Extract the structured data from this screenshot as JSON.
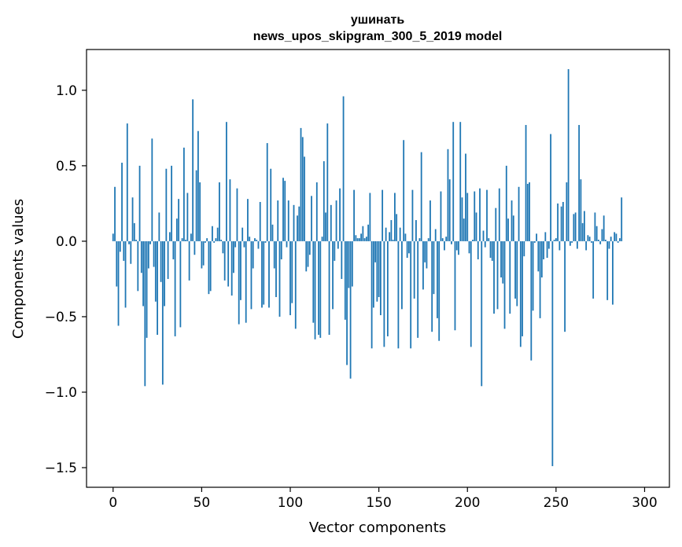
{
  "chart_data": {
    "type": "bar",
    "title_line1": "ушинать",
    "title_line2": "news_upos_skipgram_300_5_2019 model",
    "xlabel": "Vector components",
    "ylabel": "Components values",
    "xlim": [
      -15,
      314
    ],
    "ylim": [
      -1.63,
      1.27
    ],
    "xticks": [
      0,
      50,
      100,
      150,
      200,
      250,
      300
    ],
    "xtick_labels": [
      "0",
      "50",
      "100",
      "150",
      "200",
      "250",
      "300"
    ],
    "yticks": [
      1.0,
      0.5,
      0.0,
      -0.5,
      -1.0,
      -1.5
    ],
    "ytick_labels": [
      "1.0",
      "0.5",
      "0.0",
      "−0.5",
      "−1.0",
      "−1.5"
    ],
    "bar_color": "#1f77b4",
    "values": [
      0.05,
      0.36,
      -0.3,
      -0.56,
      -0.07,
      0.52,
      -0.13,
      -0.44,
      0.78,
      -0.02,
      -0.15,
      0.29,
      0.12,
      0.01,
      -0.33,
      0.5,
      -0.21,
      -0.43,
      -0.96,
      -0.64,
      -0.18,
      -0.02,
      0.68,
      -0.17,
      -0.4,
      -0.62,
      0.19,
      -0.27,
      -0.95,
      -0.43,
      0.48,
      -0.25,
      0.06,
      0.5,
      -0.12,
      -0.63,
      0.15,
      0.28,
      -0.57,
      0.02,
      0.62,
      0.01,
      0.32,
      -0.26,
      0.05,
      0.94,
      -0.09,
      0.47,
      0.73,
      0.39,
      -0.18,
      -0.16,
      -0.01,
      0.02,
      -0.35,
      -0.33,
      0.1,
      -0.01,
      0.02,
      0.09,
      0.39,
      0.01,
      -0.08,
      -0.26,
      0.79,
      -0.3,
      0.41,
      -0.36,
      -0.21,
      -0.04,
      0.35,
      -0.55,
      -0.39,
      0.09,
      -0.04,
      -0.54,
      0.28,
      0.03,
      -0.45,
      -0.18,
      0.02,
      0.01,
      -0.05,
      0.26,
      -0.44,
      -0.42,
      -0.01,
      0.65,
      -0.44,
      0.48,
      0.11,
      -0.18,
      -0.37,
      0.27,
      -0.5,
      -0.12,
      0.42,
      0.4,
      -0.04,
      0.27,
      -0.49,
      -0.41,
      0.24,
      -0.58,
      0.17,
      0.23,
      0.75,
      0.69,
      0.56,
      -0.2,
      -0.17,
      -0.09,
      0.3,
      -0.54,
      -0.65,
      0.39,
      -0.62,
      -0.64,
      0.03,
      0.53,
      0.19,
      0.78,
      -0.62,
      0.24,
      -0.45,
      -0.13,
      0.27,
      -0.05,
      0.35,
      -0.25,
      0.96,
      -0.52,
      -0.82,
      -0.31,
      -0.91,
      -0.3,
      0.34,
      0.04,
      0.02,
      0.02,
      0.05,
      0.1,
      0.02,
      0.03,
      0.11,
      0.32,
      -0.71,
      -0.44,
      -0.14,
      -0.4,
      -0.37,
      -0.49,
      0.34,
      -0.7,
      0.09,
      -0.63,
      0.06,
      0.14,
      0.01,
      0.32,
      0.18,
      -0.71,
      0.09,
      -0.45,
      0.67,
      0.05,
      -0.11,
      -0.08,
      -0.71,
      0.34,
      -0.38,
      0.14,
      -0.64,
      0.02,
      0.59,
      -0.32,
      -0.14,
      -0.18,
      0.02,
      0.27,
      -0.6,
      -0.35,
      0.08,
      -0.51,
      -0.66,
      0.33,
      0.02,
      -0.06,
      0.03,
      0.61,
      0.41,
      -0.02,
      0.79,
      -0.59,
      -0.06,
      -0.09,
      0.79,
      0.29,
      0.15,
      0.58,
      0.32,
      -0.08,
      -0.7,
      0.01,
      0.33,
      0.19,
      -0.12,
      0.35,
      -0.96,
      0.07,
      -0.04,
      0.34,
      0.02,
      -0.11,
      -0.13,
      -0.48,
      0.22,
      -0.45,
      0.35,
      -0.24,
      -0.28,
      -0.58,
      0.5,
      0.15,
      -0.48,
      0.27,
      0.17,
      -0.38,
      -0.43,
      0.36,
      -0.7,
      -0.63,
      -0.1,
      0.77,
      0.38,
      0.39,
      -0.79,
      -0.46,
      -0.01,
      0.05,
      -0.2,
      -0.51,
      -0.24,
      -0.12,
      0.06,
      -0.11,
      -0.05,
      0.71,
      -1.49,
      0.01,
      0.02,
      0.25,
      -0.06,
      0.23,
      0.26,
      -0.6,
      0.39,
      1.14,
      -0.03,
      -0.01,
      0.18,
      0.19,
      -0.05,
      0.77,
      0.41,
      0.12,
      0.2,
      -0.06,
      0.04,
      0.03,
      -0.01,
      -0.38,
      0.19,
      0.1,
      0.01,
      -0.02,
      0.08,
      0.17,
      0.01,
      -0.39,
      -0.05,
      0.03,
      -0.42,
      0.06,
      0.05,
      -0.01,
      0.02,
      0.29
    ]
  }
}
